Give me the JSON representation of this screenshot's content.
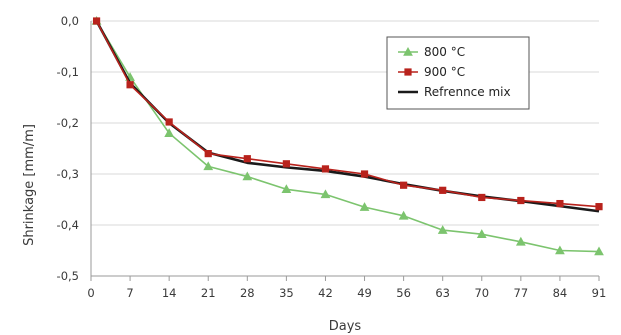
{
  "chart_data": {
    "type": "line",
    "xlabel": "Days",
    "ylabel": "Shrinkage [mm/m]",
    "x": [
      1,
      7,
      14,
      21,
      28,
      35,
      42,
      49,
      56,
      63,
      70,
      77,
      84,
      91
    ],
    "x_ticks": [
      0,
      7,
      14,
      21,
      28,
      35,
      42,
      49,
      56,
      63,
      70,
      77,
      84,
      91
    ],
    "y_ticks": [
      0.0,
      -0.1,
      -0.2,
      -0.3,
      -0.4,
      -0.5
    ],
    "y_tick_labels": [
      "0,0",
      "-0,1",
      "-0,2",
      "-0,3",
      "-0,4",
      "-0,5"
    ],
    "xlim": [
      0,
      91
    ],
    "ylim": [
      -0.5,
      0.0
    ],
    "grid": "horizontal",
    "legend_position": "top-right",
    "series": [
      {
        "name": "800 °C",
        "color": "#7cc46e",
        "marker": "triangle",
        "values": [
          0.0,
          -0.11,
          -0.22,
          -0.285,
          -0.305,
          -0.33,
          -0.34,
          -0.365,
          -0.382,
          -0.41,
          -0.418,
          -0.433,
          -0.45,
          -0.452
        ]
      },
      {
        "name": "900 °C",
        "color": "#b8221c",
        "marker": "square",
        "values": [
          0.0,
          -0.125,
          -0.198,
          -0.26,
          -0.27,
          -0.28,
          -0.29,
          -0.3,
          -0.322,
          -0.332,
          -0.346,
          -0.352,
          -0.358,
          -0.364
        ]
      },
      {
        "name": "Refrennce mix",
        "color": "#1a1a1a",
        "marker": "none",
        "values": [
          0.0,
          -0.122,
          -0.2,
          -0.258,
          -0.278,
          -0.287,
          -0.294,
          -0.305,
          -0.32,
          -0.333,
          -0.344,
          -0.353,
          -0.363,
          -0.373
        ]
      }
    ]
  }
}
